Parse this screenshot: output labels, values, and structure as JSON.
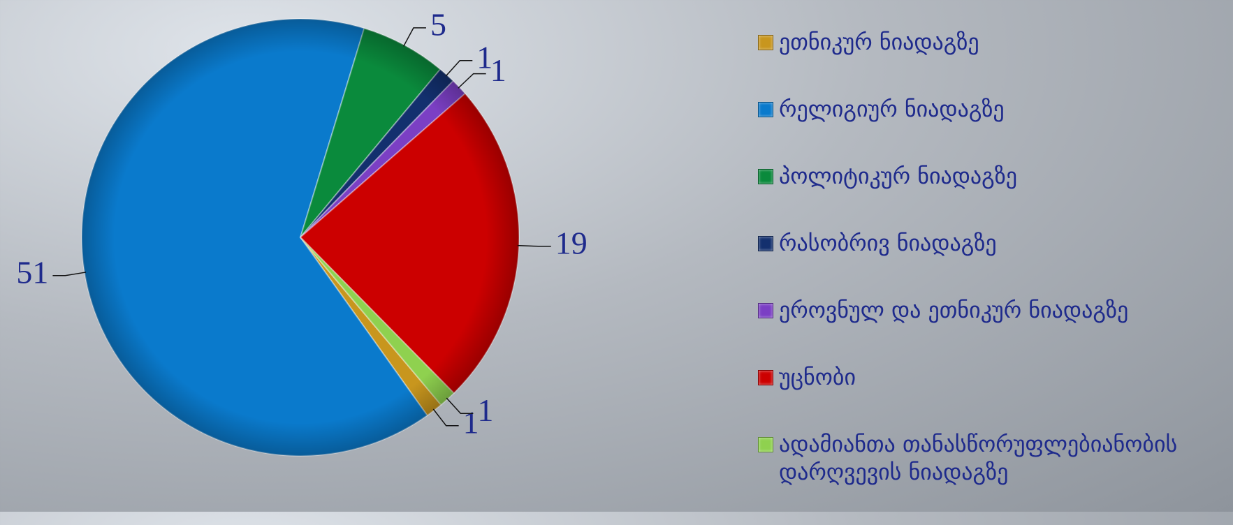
{
  "chart_data": {
    "type": "pie",
    "categories": [
      "ეთნიკურ ნიადაგზე",
      "რელიგიურ ნიადაგზე",
      "პოლიტიკურ ნიადაგზე",
      "რასობრივ ნიადაგზე",
      "ეროვნულ და ეთნიკურ ნიადაგზე",
      "უცნობი",
      "ადამიანთა თანასწორუფლებიანობის დარღვევის ნიადაგზე"
    ],
    "values": [
      1,
      51,
      5,
      1,
      1,
      19,
      1
    ],
    "colors": [
      "#c8961e",
      "#0a7acc",
      "#0a8a3c",
      "#13306e",
      "#7b3fc4",
      "#cc0000",
      "#8fd14f"
    ],
    "legend": "right"
  }
}
